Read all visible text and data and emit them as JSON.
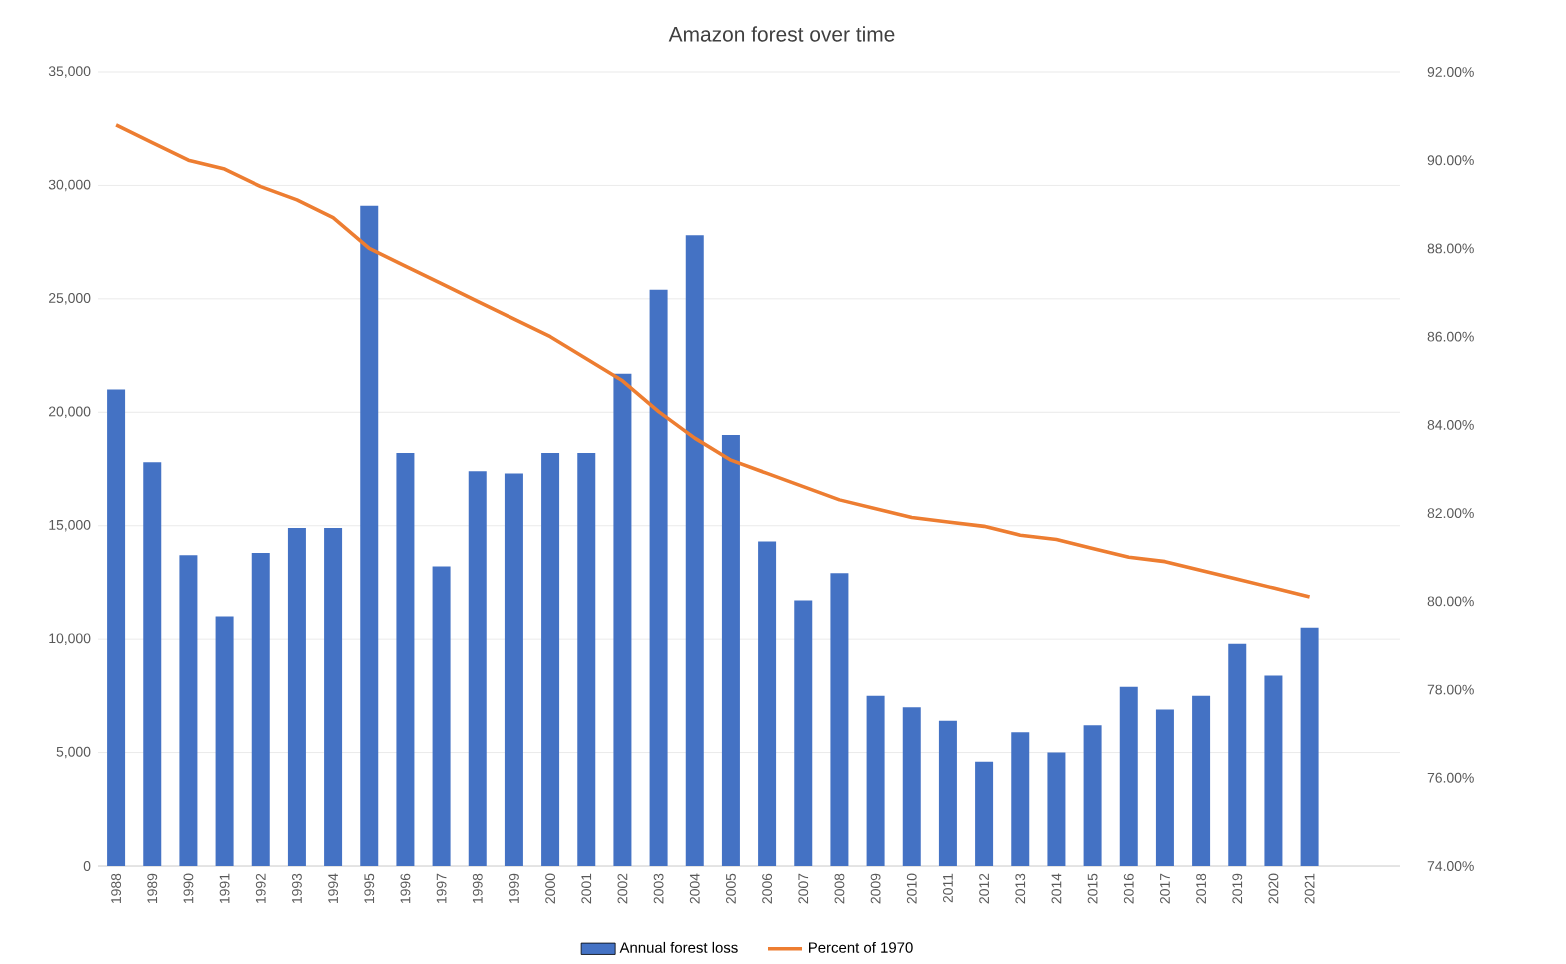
{
  "chart_data": {
    "type": "bar",
    "title": "Amazon forest over time",
    "categories": [
      "1988",
      "1989",
      "1990",
      "1991",
      "1992",
      "1993",
      "1994",
      "1995",
      "1996",
      "1997",
      "1998",
      "1999",
      "2000",
      "2001",
      "2002",
      "2003",
      "2004",
      "2005",
      "2006",
      "2007",
      "2008",
      "2009",
      "2010",
      "2011",
      "2012",
      "2013",
      "2014",
      "2015",
      "2016",
      "2017",
      "2018",
      "2019",
      "2020",
      "2021",
      null,
      null
    ],
    "series": [
      {
        "name": "Annual forest loss",
        "color": "#4472c4",
        "values": [
          21000,
          17800,
          13700,
          11000,
          13800,
          14900,
          14900,
          29100,
          18200,
          13200,
          17400,
          17300,
          18200,
          18200,
          21700,
          25400,
          27800,
          19000,
          14300,
          11700,
          12900,
          7500,
          7000,
          6400,
          4600,
          5900,
          5000,
          6200,
          7900,
          6900,
          7500,
          9800,
          8400,
          10500,
          null,
          null
        ]
      },
      {
        "name": "Percent of 1970",
        "type": "line",
        "axis": "y2",
        "color": "#ed7d31",
        "values": [
          90.8,
          90.4,
          90.0,
          89.8,
          89.4,
          89.1,
          88.7,
          88.0,
          87.6,
          87.2,
          86.8,
          86.4,
          86.0,
          85.5,
          85.0,
          84.3,
          83.7,
          83.2,
          82.9,
          82.6,
          82.3,
          82.1,
          81.9,
          81.8,
          81.7,
          81.5,
          81.4,
          81.2,
          81.0,
          80.9,
          80.7,
          80.5,
          80.3,
          80.1,
          null,
          null
        ]
      }
    ],
    "ylim": [
      0,
      35000
    ],
    "yticks": [
      {
        "value": 0,
        "label": "0"
      },
      {
        "value": 5000,
        "label": "5,000"
      },
      {
        "value": 10000,
        "label": "10,000"
      },
      {
        "value": 15000,
        "label": "15,000"
      },
      {
        "value": 20000,
        "label": "20,000"
      },
      {
        "value": 25000,
        "label": "25,000"
      },
      {
        "value": 30000,
        "label": "30,000"
      },
      {
        "value": 35000,
        "label": "35,000"
      }
    ],
    "y2lim": [
      74,
      92
    ],
    "y2ticks": [
      {
        "value": 74,
        "label": "74.00%"
      },
      {
        "value": 76,
        "label": "76.00%"
      },
      {
        "value": 78,
        "label": "78.00%"
      },
      {
        "value": 80,
        "label": "80.00%"
      },
      {
        "value": 82,
        "label": "82.00%"
      },
      {
        "value": 84,
        "label": "84.00%"
      },
      {
        "value": 86,
        "label": "86.00%"
      },
      {
        "value": 88,
        "label": "88.00%"
      },
      {
        "value": 90,
        "label": "90.00%"
      },
      {
        "value": 92,
        "label": "92.00%"
      }
    ],
    "grid": "y",
    "legend": "bottom"
  }
}
